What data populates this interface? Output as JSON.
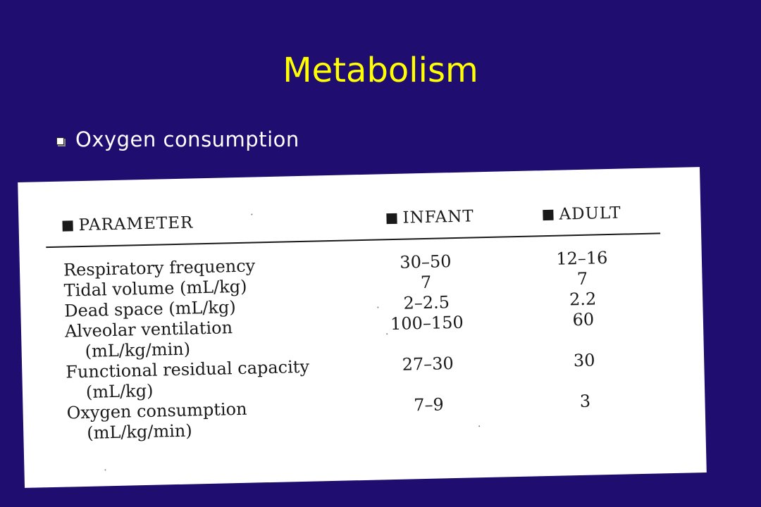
{
  "slide": {
    "title": "Metabolism",
    "bullet": "Oxygen consumption"
  },
  "table": {
    "headers": {
      "parameter": "PARAMETER",
      "infant": "INFANT",
      "adult": "ADULT"
    },
    "rows": [
      {
        "parameter": "Respiratory frequency",
        "parameter_cont": "",
        "infant": "30–50",
        "adult": "12–16"
      },
      {
        "parameter": "Tidal volume (mL/kg)",
        "parameter_cont": "",
        "infant": "7",
        "adult": "7"
      },
      {
        "parameter": "Dead space (mL/kg)",
        "parameter_cont": "",
        "infant": "2–2.5",
        "adult": "2.2"
      },
      {
        "parameter": "Alveolar ventilation",
        "parameter_cont": "(mL/kg/min)",
        "infant": "100–150",
        "adult": "60"
      },
      {
        "parameter": "Functional residual capacity",
        "parameter_cont": "(mL/kg)",
        "infant": "27–30",
        "adult": "30"
      },
      {
        "parameter": "Oxygen consumption",
        "parameter_cont": "(mL/kg/min)",
        "infant": "7–9",
        "adult": "3"
      }
    ]
  }
}
